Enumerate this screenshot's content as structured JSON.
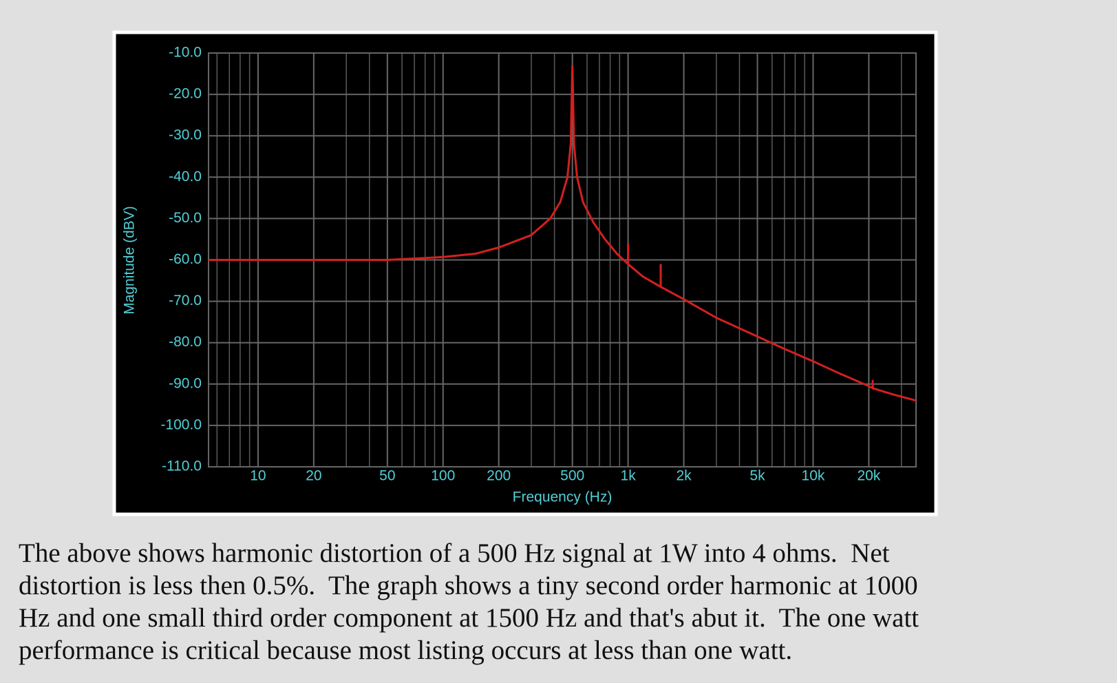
{
  "chart_data": {
    "type": "line",
    "xlabel": "Frequency (Hz)",
    "ylabel": "Magnitude (dBV)",
    "log_x": true,
    "grid": true,
    "x": [
      5.4,
      20,
      50,
      100,
      150,
      200,
      300,
      380,
      430,
      470,
      490,
      500,
      510,
      530,
      570,
      650,
      750,
      870,
      1000,
      1000,
      1000,
      1200,
      1500,
      1500,
      1500,
      2000,
      3000,
      5000,
      7000,
      10000,
      14000,
      20000,
      21000,
      21000,
      21000,
      27000,
      36000
    ],
    "series": [
      {
        "name": "Magnitude",
        "color": "#d42020",
        "values": [
          -60,
          -60,
          -60,
          -59.3,
          -58.5,
          -57,
          -54,
          -50,
          -46,
          -40,
          -32,
          -13,
          -32,
          -40,
          -46,
          -51,
          -55,
          -58.5,
          -61,
          -56,
          -61,
          -64,
          -66.5,
          -61,
          -66.5,
          -69.5,
          -74,
          -78.5,
          -81.5,
          -84.5,
          -87.5,
          -90.5,
          -91,
          -89,
          -91,
          -92.5,
          -94
        ]
      }
    ],
    "xlim": [
      5.4,
      36000
    ],
    "ylim": [
      -110,
      -10
    ],
    "xticks": [
      10,
      20,
      50,
      100,
      200,
      500,
      {
        "value": 1000,
        "label": "1k"
      },
      {
        "value": 2000,
        "label": "2k"
      },
      {
        "value": 5000,
        "label": "5k"
      },
      {
        "value": 10000,
        "label": "10k"
      },
      {
        "value": 20000,
        "label": "20k"
      }
    ],
    "yticks": [
      {
        "value": -10,
        "label": "-10.0"
      },
      {
        "value": -20,
        "label": "-20.0"
      },
      {
        "value": -30,
        "label": "-30.0"
      },
      {
        "value": -40,
        "label": "-40.0"
      },
      {
        "value": -50,
        "label": "-50.0"
      },
      {
        "value": -60,
        "label": "-60.0"
      },
      {
        "value": -70,
        "label": "-70.0"
      },
      {
        "value": -80,
        "label": "-80.0"
      },
      {
        "value": -90,
        "label": "-90.0"
      },
      {
        "value": -100,
        "label": "-100.0"
      },
      {
        "value": -110,
        "label": "-110.0"
      }
    ]
  },
  "caption": {
    "lines": [
      "The above shows harmonic distortion of a 500 Hz signal at 1W into 4 ohms.  Net",
      "distortion is less then 0.5%.  The graph shows a tiny second order harmonic at 1000",
      "Hz and one small third order component at 1500 Hz and that's abut it.  The one watt",
      "performance is critical because most listing occurs at less than one watt."
    ]
  }
}
